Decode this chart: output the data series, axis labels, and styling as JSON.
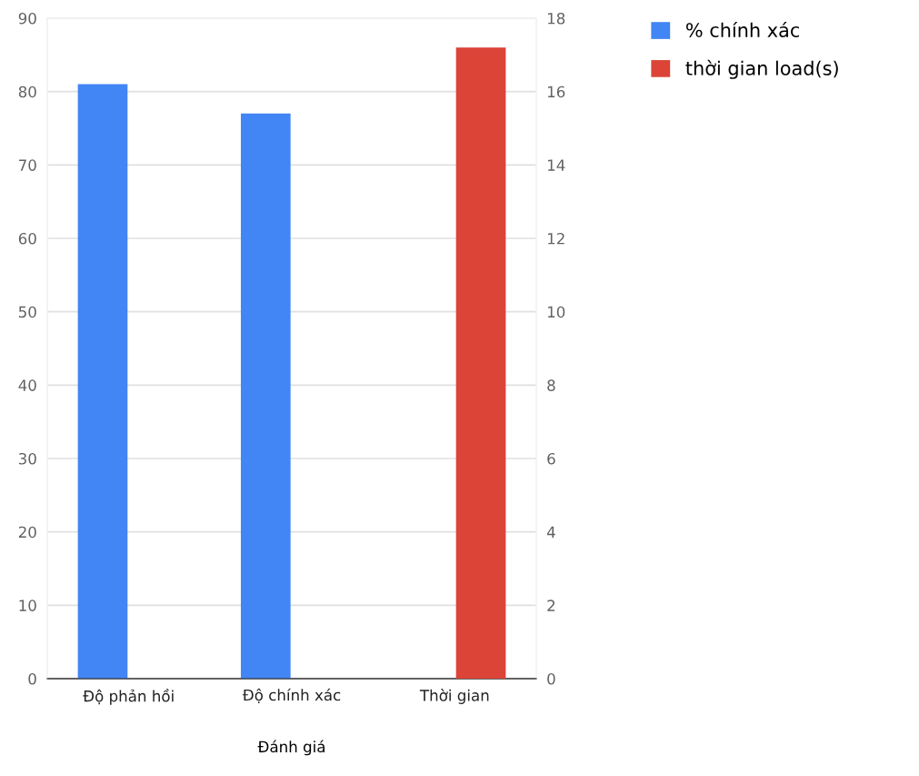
{
  "chart_data": {
    "type": "bar",
    "xlabel": "Đánh giá",
    "categories": [
      "Độ phản hồi",
      "Độ chính xác",
      "Thời gian"
    ],
    "series": [
      {
        "name": "% chính xác",
        "color": "#4285f4",
        "values": [
          81,
          77,
          null
        ]
      },
      {
        "name": "thời gian load(s)",
        "color": "#db4437",
        "values": [
          null,
          null,
          17.2
        ],
        "axis": "y2"
      }
    ],
    "ylim": [
      0,
      90
    ],
    "yticks": [
      0,
      10,
      20,
      30,
      40,
      50,
      60,
      70,
      80,
      90
    ],
    "y2lim": [
      0,
      18
    ],
    "y2ticks": [
      0,
      2,
      4,
      6,
      8,
      10,
      12,
      14,
      16,
      18
    ],
    "grid": "y",
    "legend": "top right"
  }
}
